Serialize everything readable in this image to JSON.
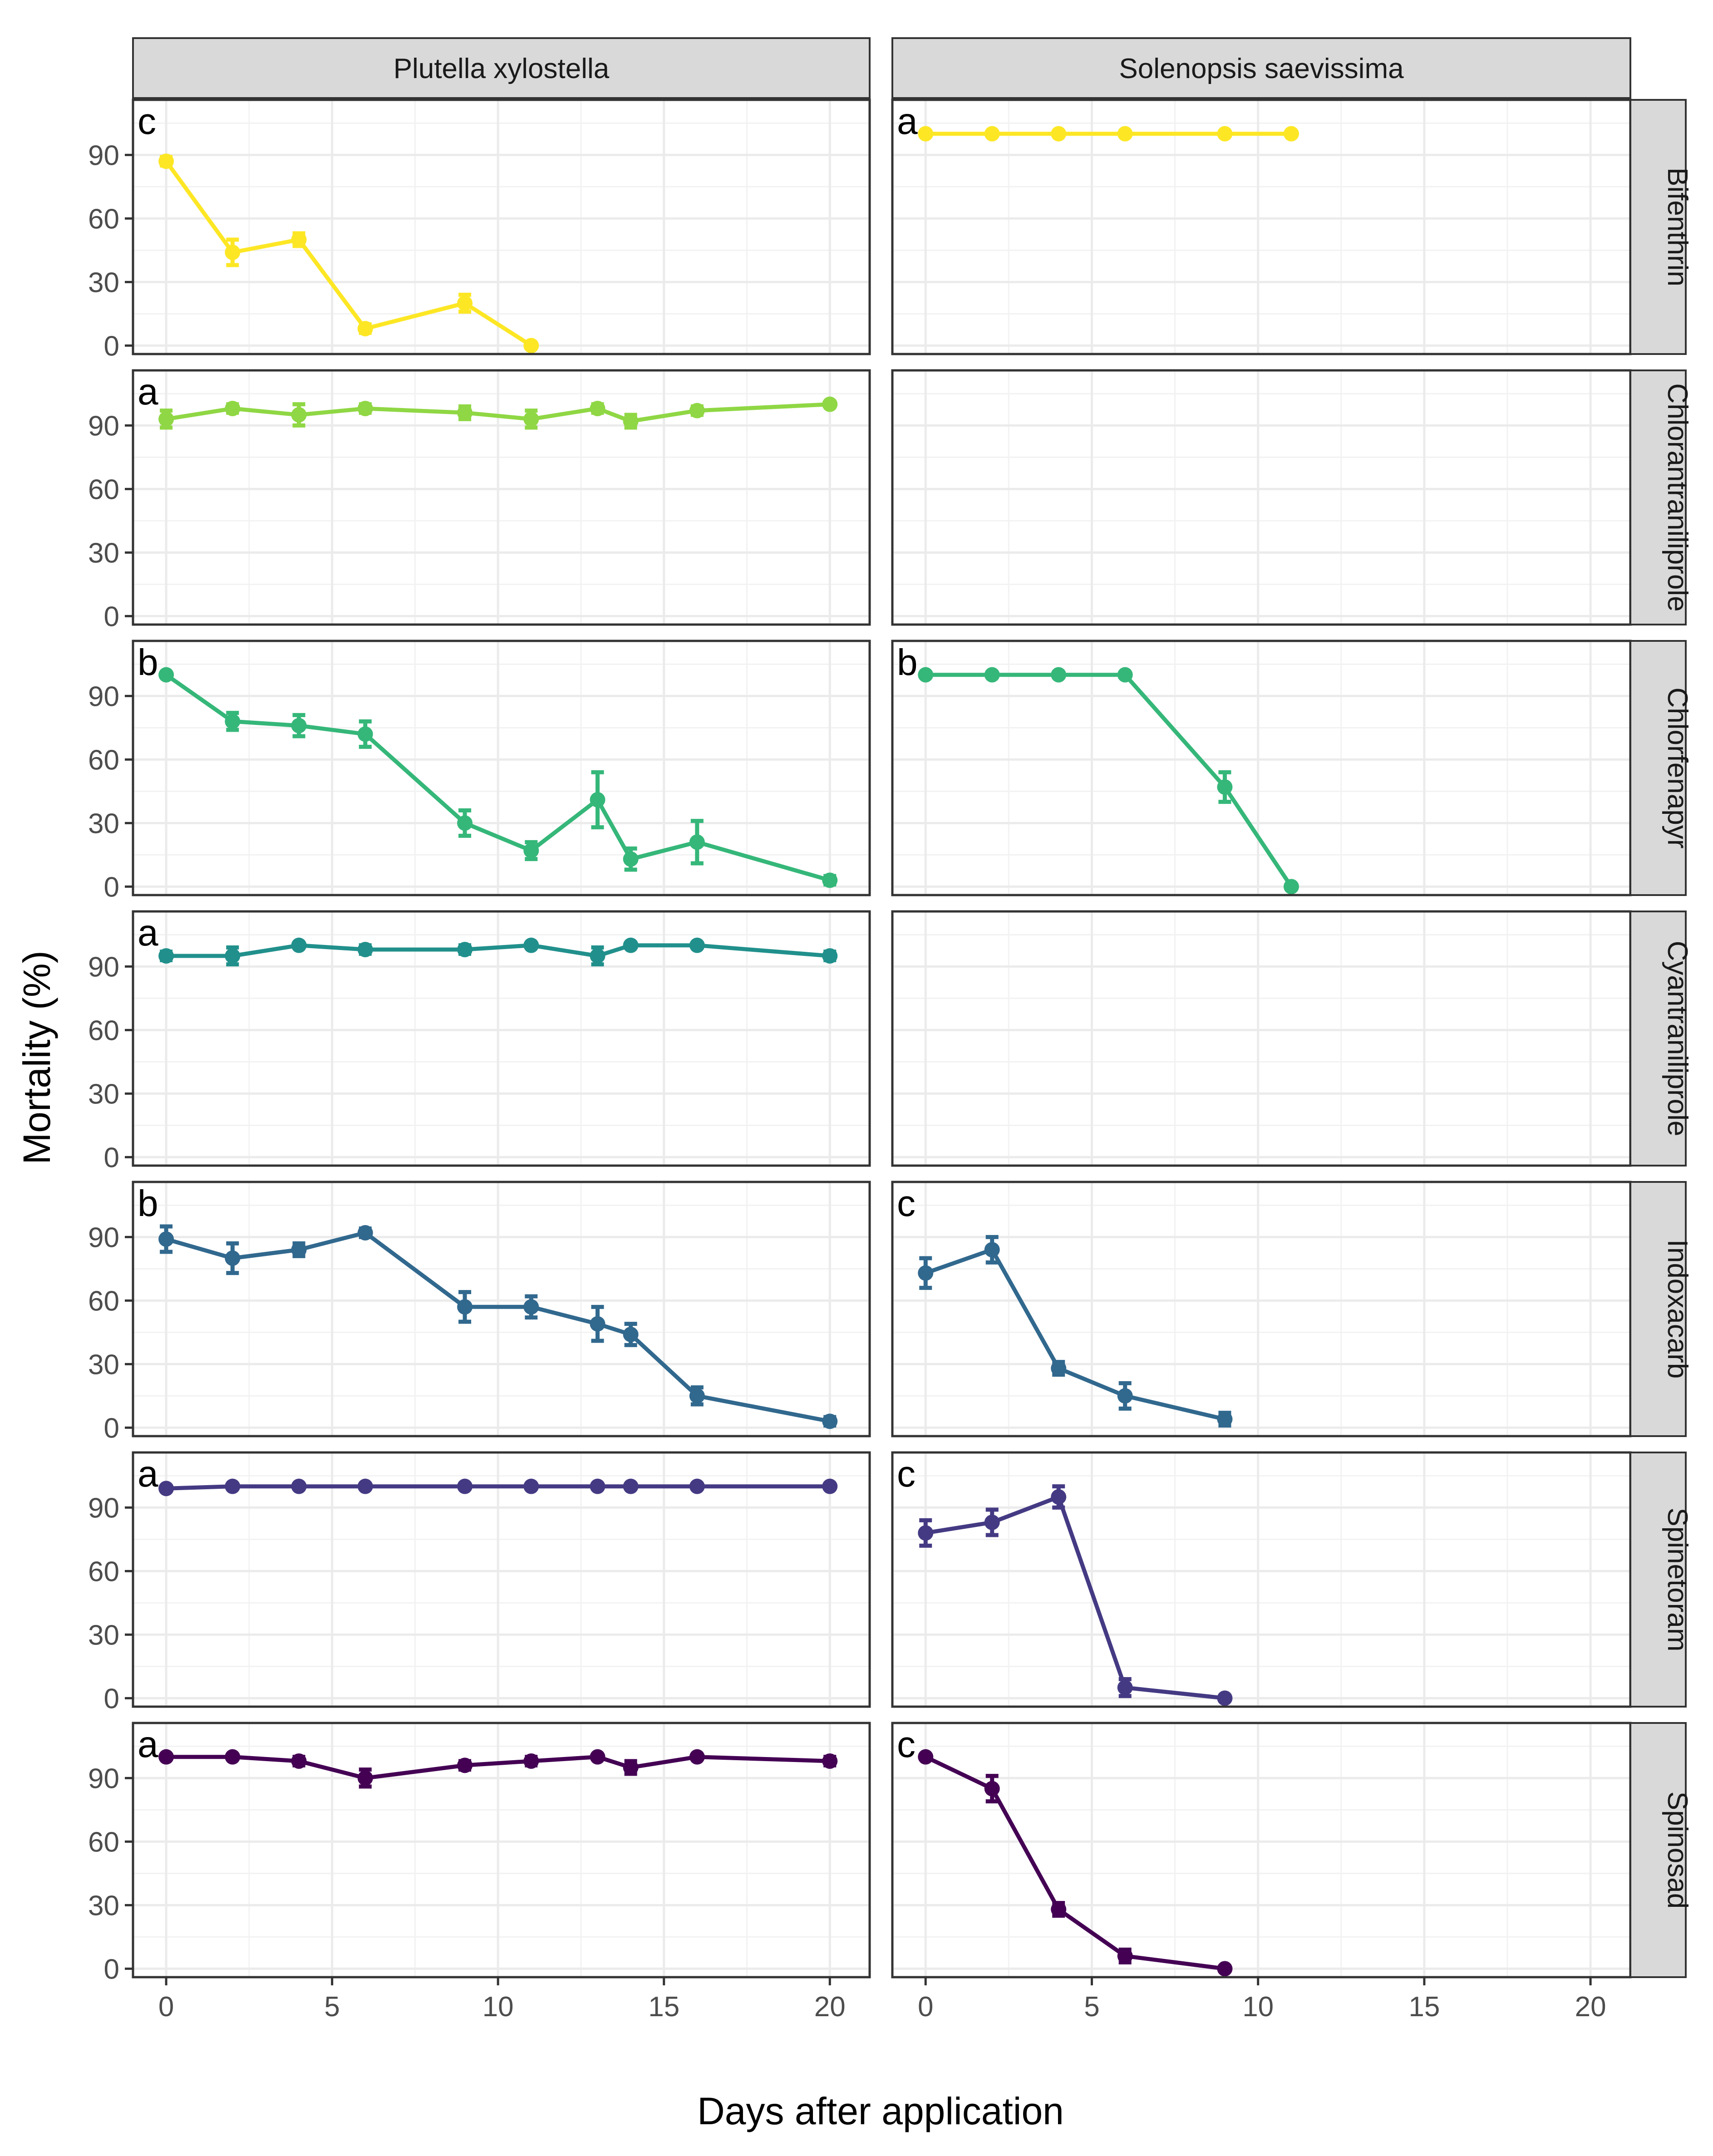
{
  "chart_data": {
    "type": "line",
    "facet_columns": [
      "Plutella xylostella",
      "Solenopsis saevissima"
    ],
    "facet_rows": [
      "Bifenthrin",
      "Chlorantraniliprole",
      "Chlorfenapyr",
      "Cyantraniliprole",
      "Indoxacarb",
      "Spinetoram",
      "Spinosad"
    ],
    "xlabel": "Days after application",
    "ylabel": "Mortality (%)",
    "xlim": [
      -1,
      21.2
    ],
    "ylim": [
      -4,
      116
    ],
    "xticks": [
      0,
      5,
      10,
      15,
      20
    ],
    "yticks": [
      0,
      30,
      60,
      90
    ],
    "grid": true,
    "colors": {
      "Bifenthrin": "#FDE725",
      "Chlorantraniliprole": "#8FD744",
      "Chlorfenapyr": "#35B779",
      "Cyantraniliprole": "#21908C",
      "Indoxacarb": "#31688E",
      "Spinetoram": "#443A83",
      "Spinosad": "#440154"
    },
    "panels": [
      {
        "row": "Bifenthrin",
        "col": "Plutella xylostella",
        "letter": "c",
        "x": [
          0,
          2,
          4,
          6,
          9,
          11
        ],
        "y": [
          87,
          44,
          50,
          8,
          20,
          0
        ],
        "err": [
          2,
          6,
          3,
          2,
          4,
          0
        ]
      },
      {
        "row": "Bifenthrin",
        "col": "Solenopsis saevissima",
        "letter": "a",
        "x": [
          0,
          2,
          4,
          6,
          9,
          11
        ],
        "y": [
          100,
          100,
          100,
          100,
          100,
          100
        ],
        "err": [
          0,
          0,
          0,
          0,
          0,
          0
        ]
      },
      {
        "row": "Chlorantraniliprole",
        "col": "Plutella xylostella",
        "letter": "a",
        "x": [
          0,
          2,
          4,
          6,
          9,
          11,
          13,
          14,
          16,
          20
        ],
        "y": [
          93,
          98,
          95,
          98,
          96,
          93,
          98,
          92,
          97,
          100
        ],
        "err": [
          4,
          2,
          5,
          2,
          3,
          4,
          2,
          3,
          2,
          0
        ]
      },
      {
        "row": "Chlorantraniliprole",
        "col": "Solenopsis saevissima",
        "letter": "",
        "x": [],
        "y": [],
        "err": []
      },
      {
        "row": "Chlorfenapyr",
        "col": "Plutella xylostella",
        "letter": "b",
        "x": [
          0,
          2,
          4,
          6,
          9,
          11,
          13,
          14,
          16,
          20
        ],
        "y": [
          100,
          78,
          76,
          72,
          30,
          17,
          41,
          13,
          21,
          3
        ],
        "err": [
          0,
          4,
          5,
          6,
          6,
          4,
          13,
          5,
          10,
          2
        ]
      },
      {
        "row": "Chlorfenapyr",
        "col": "Solenopsis saevissima",
        "letter": "b",
        "x": [
          0,
          2,
          4,
          6,
          9,
          11
        ],
        "y": [
          100,
          100,
          100,
          100,
          47,
          0
        ],
        "err": [
          0,
          0,
          0,
          0,
          7,
          0
        ]
      },
      {
        "row": "Cyantraniliprole",
        "col": "Plutella xylostella",
        "letter": "a",
        "x": [
          0,
          2,
          4,
          6,
          9,
          11,
          13,
          14,
          16,
          20
        ],
        "y": [
          95,
          95,
          100,
          98,
          98,
          100,
          95,
          100,
          100,
          95
        ],
        "err": [
          2,
          4,
          0,
          2,
          2,
          0,
          4,
          0,
          0,
          2
        ]
      },
      {
        "row": "Cyantraniliprole",
        "col": "Solenopsis saevissima",
        "letter": "",
        "x": [],
        "y": [],
        "err": []
      },
      {
        "row": "Indoxacarb",
        "col": "Plutella xylostella",
        "letter": "b",
        "x": [
          0,
          2,
          4,
          6,
          9,
          11,
          13,
          14,
          16,
          20
        ],
        "y": [
          89,
          80,
          84,
          92,
          57,
          57,
          49,
          44,
          15,
          3
        ],
        "err": [
          6,
          7,
          3,
          2,
          7,
          5,
          8,
          5,
          4,
          2
        ]
      },
      {
        "row": "Indoxacarb",
        "col": "Solenopsis saevissima",
        "letter": "c",
        "x": [
          0,
          2,
          4,
          6,
          9
        ],
        "y": [
          73,
          84,
          28,
          15,
          4
        ],
        "err": [
          7,
          6,
          3,
          6,
          3
        ]
      },
      {
        "row": "Spinetoram",
        "col": "Plutella xylostella",
        "letter": "a",
        "x": [
          0,
          2,
          4,
          6,
          9,
          11,
          13,
          14,
          16,
          20
        ],
        "y": [
          99,
          100,
          100,
          100,
          100,
          100,
          100,
          100,
          100,
          100
        ],
        "err": [
          1,
          0,
          0,
          0,
          0,
          0,
          0,
          0,
          0,
          0
        ]
      },
      {
        "row": "Spinetoram",
        "col": "Solenopsis saevissima",
        "letter": "c",
        "x": [
          0,
          2,
          4,
          6,
          9
        ],
        "y": [
          78,
          83,
          95,
          5,
          0
        ],
        "err": [
          6,
          6,
          5,
          4,
          0
        ]
      },
      {
        "row": "Spinosad",
        "col": "Plutella xylostella",
        "letter": "a",
        "x": [
          0,
          2,
          4,
          6,
          9,
          11,
          13,
          14,
          16,
          20
        ],
        "y": [
          100,
          100,
          98,
          90,
          96,
          98,
          100,
          95,
          100,
          98
        ],
        "err": [
          0,
          0,
          2,
          4,
          2,
          2,
          0,
          3,
          0,
          2
        ]
      },
      {
        "row": "Spinosad",
        "col": "Solenopsis saevissima",
        "letter": "c",
        "x": [
          0,
          2,
          4,
          6,
          9
        ],
        "y": [
          100,
          85,
          28,
          6,
          0
        ],
        "err": [
          0,
          6,
          3,
          3,
          0
        ]
      }
    ]
  }
}
